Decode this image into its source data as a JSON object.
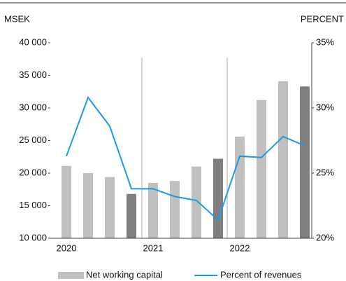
{
  "chart_data": {
    "type": "bar_line",
    "y_label": "MSEK",
    "y2_label": "PERCENT",
    "categories": [
      "2020",
      null,
      null,
      null,
      "2021",
      null,
      null,
      null,
      "2022",
      null,
      null,
      null
    ],
    "series": [
      {
        "name": "Net working capital",
        "type": "bar",
        "color": "#c0c0c0",
        "colors": [
          "#c0c0c0",
          "#c0c0c0",
          "#c0c0c0",
          "#7f7f7f",
          "#c0c0c0",
          "#c0c0c0",
          "#c0c0c0",
          "#7f7f7f",
          "#c0c0c0",
          "#c0c0c0",
          "#c0c0c0",
          "#7f7f7f"
        ],
        "values": [
          21100,
          20000,
          19400,
          16800,
          18500,
          18800,
          21000,
          22200,
          25600,
          31200,
          34100,
          33300
        ]
      },
      {
        "name": "Percent of revenues",
        "type": "line",
        "axis": "y2",
        "color": "#1e9be0",
        "values": [
          26.3,
          30.8,
          28.6,
          23.8,
          23.8,
          23.2,
          22.9,
          21.4,
          26.3,
          26.2,
          27.8,
          27.1
        ]
      }
    ],
    "ylim": [
      10000,
      40000
    ],
    "yticks": [
      {
        "value": 10000,
        "label": "10 000"
      },
      {
        "value": 15000,
        "label": "15 000"
      },
      {
        "value": 20000,
        "label": "20 000"
      },
      {
        "value": 25000,
        "label": "25 000"
      },
      {
        "value": 30000,
        "label": "30 000"
      },
      {
        "value": 35000,
        "label": "35 000"
      },
      {
        "value": 40000,
        "label": "40 000"
      }
    ],
    "y2lim": [
      20,
      35
    ],
    "y2ticks": [
      {
        "value": 20,
        "label": "20%"
      },
      {
        "value": 25,
        "label": "25%"
      },
      {
        "value": 30,
        "label": "30%"
      },
      {
        "value": 35,
        "label": "35%"
      }
    ],
    "legend": "bottom"
  }
}
